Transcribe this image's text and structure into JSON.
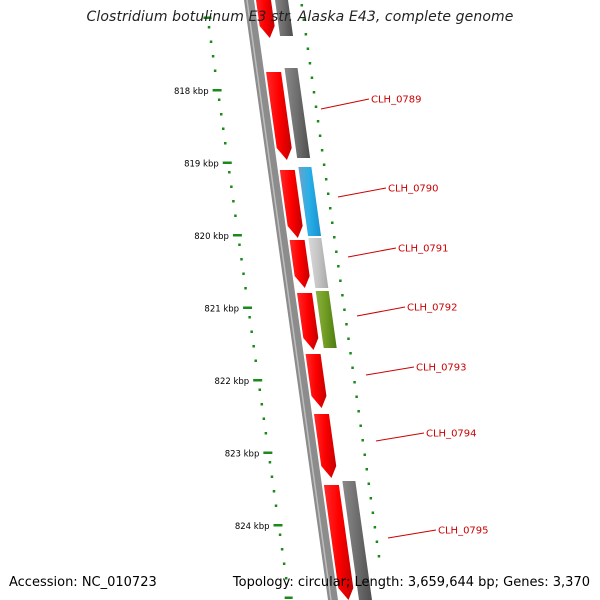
{
  "title": "Clostridium botulinum E3 str. Alaska E43, complete genome",
  "footer": {
    "accession": "Accession: NC_010723",
    "summary": "Topology: circular; Length: 3,659,644 bp; Genes: 3,370"
  },
  "ticks": [
    "818 kbp",
    "819 kbp",
    "820 kbp",
    "821 kbp",
    "822 kbp",
    "823 kbp",
    "824 kbp"
  ],
  "genes": [
    {
      "label": "CLH_0789",
      "color": "#707070"
    },
    {
      "label": "CLH_0790",
      "color": "#2ab0e8"
    },
    {
      "label": "CLH_0791",
      "color": "#c8c8c8"
    },
    {
      "label": "CLH_0792",
      "color": "#78a028"
    },
    {
      "label": "CLH_0793",
      "color": ""
    },
    {
      "label": "CLH_0794",
      "color": ""
    },
    {
      "label": "CLH_0795",
      "color": "#707070"
    }
  ],
  "colors": {
    "cds": "#ff0000",
    "tick": "#1a8a1a",
    "label": "#cc0000",
    "backbone": "#8c8c8c"
  }
}
